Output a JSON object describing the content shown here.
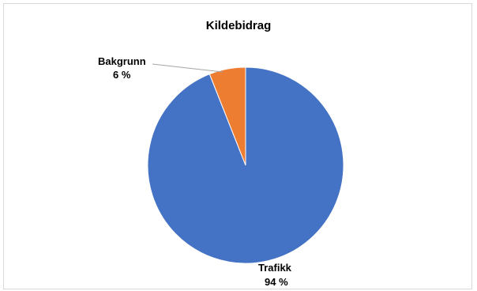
{
  "chart_data": {
    "type": "pie",
    "title": "Kildebidrag",
    "start_angle": "12 o'clock, clockwise",
    "slices": [
      {
        "name": "Trafikk",
        "value": 94,
        "value_label": "94 %",
        "color": "#4472c4"
      },
      {
        "name": "Bakgrunn",
        "value": 6,
        "value_label": "6 %",
        "color": "#ed7d31"
      }
    ],
    "leader_line_color": "#a5a5a5"
  }
}
